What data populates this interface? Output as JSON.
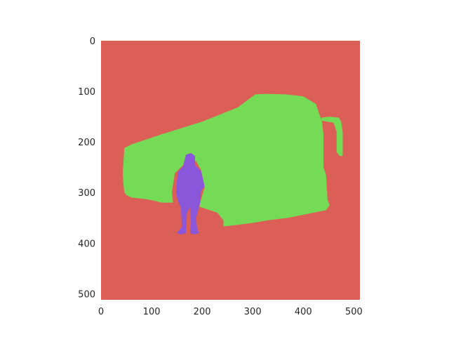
{
  "chart_data": {
    "type": "heatmap",
    "subtype": "segmentation-mask",
    "title": "",
    "xlabel": "",
    "ylabel": "",
    "xlim": [
      0,
      512
    ],
    "ylim": [
      512,
      0
    ],
    "y_inverted": true,
    "grid": false,
    "legend": "none",
    "xticks": [
      0,
      100,
      200,
      300,
      400,
      500
    ],
    "yticks": [
      0,
      100,
      200,
      300,
      400,
      500
    ],
    "classes": [
      {
        "id": 0,
        "role": "background",
        "color": "#db5f57"
      },
      {
        "id": 1,
        "role": "bus",
        "color": "#75db57"
      },
      {
        "id": 2,
        "role": "person",
        "color": "#8a57db"
      }
    ],
    "regions": [
      {
        "class": 1,
        "outline": [
          [
            46,
            212
          ],
          [
            60,
            205
          ],
          [
            120,
            185
          ],
          [
            200,
            160
          ],
          [
            270,
            132
          ],
          [
            305,
            106
          ],
          [
            325,
            105
          ],
          [
            365,
            106
          ],
          [
            400,
            110
          ],
          [
            425,
            125
          ],
          [
            437,
            160
          ],
          [
            440,
            185
          ],
          [
            440,
            250
          ],
          [
            445,
            265
          ],
          [
            448,
            315
          ],
          [
            452,
            325
          ],
          [
            445,
            335
          ],
          [
            420,
            340
          ],
          [
            370,
            350
          ],
          [
            330,
            355
          ],
          [
            300,
            360
          ],
          [
            260,
            365
          ],
          [
            242,
            367
          ],
          [
            242,
            355
          ],
          [
            230,
            340
          ],
          [
            200,
            330
          ],
          [
            185,
            327
          ],
          [
            150,
            320
          ],
          [
            120,
            320
          ],
          [
            100,
            315
          ],
          [
            80,
            312
          ],
          [
            60,
            310
          ],
          [
            50,
            305
          ],
          [
            46,
            300
          ],
          [
            44,
            280
          ],
          [
            43,
            260
          ],
          [
            45,
            230
          ]
        ]
      },
      {
        "class": 1,
        "outline": [
          [
            436,
            152
          ],
          [
            452,
            150
          ],
          [
            470,
            152
          ],
          [
            475,
            160
          ],
          [
            478,
            180
          ],
          [
            478,
            228
          ],
          [
            472,
            228
          ],
          [
            466,
            220
          ],
          [
            466,
            180
          ],
          [
            460,
            162
          ],
          [
            436,
            158
          ]
        ]
      },
      {
        "class": 0,
        "outline": [
          [
            140,
            340
          ],
          [
            150,
            320
          ],
          [
            160,
            310
          ],
          [
            175,
            312
          ],
          [
            185,
            327
          ],
          [
            200,
            330
          ],
          [
            230,
            340
          ],
          [
            242,
            355
          ],
          [
            242,
            367
          ],
          [
            200,
            380
          ],
          [
            150,
            380
          ]
        ]
      },
      {
        "class": 0,
        "outline": [
          [
            160,
            248
          ],
          [
            172,
            238
          ],
          [
            188,
            238
          ],
          [
            198,
            256
          ],
          [
            205,
            290
          ],
          [
            196,
            320
          ],
          [
            190,
            360
          ],
          [
            183,
            386
          ],
          [
            166,
            386
          ],
          [
            150,
            372
          ],
          [
            145,
            340
          ],
          [
            140,
            300
          ],
          [
            146,
            262
          ]
        ]
      },
      {
        "class": 2,
        "outline": [
          [
            168,
            225
          ],
          [
            178,
            222
          ],
          [
            186,
            228
          ],
          [
            186,
            246
          ],
          [
            198,
            258
          ],
          [
            205,
            288
          ],
          [
            198,
            296
          ],
          [
            196,
            320
          ],
          [
            188,
            350
          ],
          [
            190,
            370
          ],
          [
            194,
            380
          ],
          [
            185,
            383
          ],
          [
            176,
            380
          ],
          [
            178,
            360
          ],
          [
            176,
            330
          ],
          [
            170,
            340
          ],
          [
            168,
            380
          ],
          [
            158,
            383
          ],
          [
            150,
            380
          ],
          [
            160,
            368
          ],
          [
            158,
            330
          ],
          [
            152,
            316
          ],
          [
            148,
            300
          ],
          [
            152,
            260
          ],
          [
            162,
            248
          ]
        ]
      }
    ]
  }
}
